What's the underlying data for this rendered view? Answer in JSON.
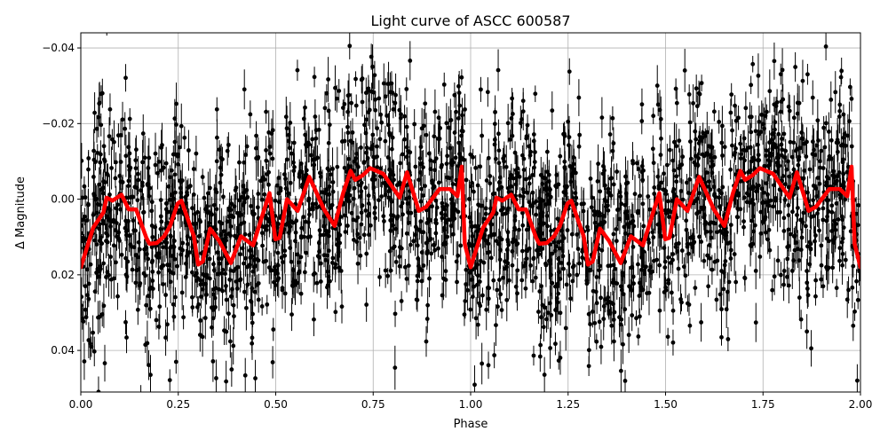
{
  "chart_data": {
    "type": "scatter",
    "title": "Light curve of ASCC 600587",
    "xlabel": "Phase",
    "ylabel": "Δ Magnitude",
    "xlim": [
      0.0,
      2.0
    ],
    "ylim": [
      0.051,
      -0.044
    ],
    "y_inverted": true,
    "grid": true,
    "xticks": [
      "0.00",
      "0.25",
      "0.50",
      "0.75",
      "1.00",
      "1.25",
      "1.50",
      "1.75",
      "2.00"
    ],
    "xtick_values": [
      0,
      0.25,
      0.5,
      0.75,
      1.0,
      1.25,
      1.5,
      1.75,
      2.0
    ],
    "yticks": [
      "−0.04",
      "−0.02",
      "0.00",
      "0.02",
      "0.04"
    ],
    "ytick_values": [
      -0.04,
      -0.02,
      0.0,
      0.02,
      0.04
    ],
    "colors": {
      "points": "#000000",
      "model": "#ff0000",
      "grid": "#b0b0b0"
    },
    "model_curve": {
      "period_repeats": 2,
      "phase": [
        0.0,
        0.032,
        0.058,
        0.066,
        0.081,
        0.104,
        0.123,
        0.142,
        0.168,
        0.176,
        0.195,
        0.214,
        0.229,
        0.248,
        0.258,
        0.29,
        0.301,
        0.313,
        0.332,
        0.355,
        0.385,
        0.411,
        0.442,
        0.468,
        0.484,
        0.499,
        0.51,
        0.529,
        0.556,
        0.586,
        0.624,
        0.651,
        0.673,
        0.692,
        0.704,
        0.723,
        0.742,
        0.776,
        0.818,
        0.837,
        0.867,
        0.886,
        0.92,
        0.947,
        0.966,
        0.977,
        0.985,
        1.0
      ],
      "magnitude": [
        0.018,
        0.0075,
        0.0035,
        -0.0004,
        0.0004,
        -0.0012,
        0.0027,
        0.0027,
        0.0102,
        0.0118,
        0.0116,
        0.0098,
        0.0071,
        0.0012,
        0.0004,
        0.0098,
        0.0173,
        0.0165,
        0.0078,
        0.011,
        0.0169,
        0.0098,
        0.0122,
        0.0035,
        -0.0016,
        0.0106,
        0.0102,
        0.0,
        0.0031,
        -0.0059,
        0.0027,
        0.0071,
        -0.0016,
        -0.0075,
        -0.0051,
        -0.0063,
        -0.0082,
        -0.0067,
        -0.0004,
        -0.0071,
        0.0031,
        0.002,
        -0.0027,
        -0.0027,
        -0.0008,
        -0.0086,
        0.0118,
        0.018
      ]
    }
  }
}
